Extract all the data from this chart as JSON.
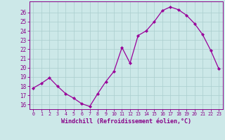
{
  "x": [
    0,
    1,
    2,
    3,
    4,
    5,
    6,
    7,
    8,
    9,
    10,
    11,
    12,
    13,
    14,
    15,
    16,
    17,
    18,
    19,
    20,
    21,
    22,
    23
  ],
  "y": [
    17.8,
    18.3,
    18.9,
    18.0,
    17.2,
    16.7,
    16.1,
    15.8,
    17.2,
    18.5,
    19.6,
    22.2,
    20.5,
    23.5,
    24.0,
    25.0,
    26.2,
    26.6,
    26.3,
    25.7,
    24.8,
    23.6,
    21.9,
    19.9
  ],
  "line_color": "#990099",
  "marker_color": "#990099",
  "bg_color": "#cce8e8",
  "grid_color": "#aacece",
  "xlabel": "Windchill (Refroidissement éolien,°C)",
  "ylim": [
    15.5,
    27.2
  ],
  "xlim": [
    -0.5,
    23.5
  ],
  "yticks": [
    16,
    17,
    18,
    19,
    20,
    21,
    22,
    23,
    24,
    25,
    26
  ],
  "xtick_labels": [
    "0",
    "1",
    "2",
    "3",
    "4",
    "5",
    "6",
    "7",
    "8",
    "9",
    "10",
    "11",
    "12",
    "13",
    "14",
    "15",
    "16",
    "17",
    "18",
    "19",
    "20",
    "21",
    "22",
    "23"
  ],
  "tick_color": "#880088",
  "label_color": "#880088",
  "axis_color": "#880088",
  "font_family": "monospace",
  "xlabel_fontsize": 6.0,
  "ytick_fontsize": 5.5,
  "xtick_fontsize": 4.8,
  "linewidth": 0.9,
  "markersize": 2.2
}
